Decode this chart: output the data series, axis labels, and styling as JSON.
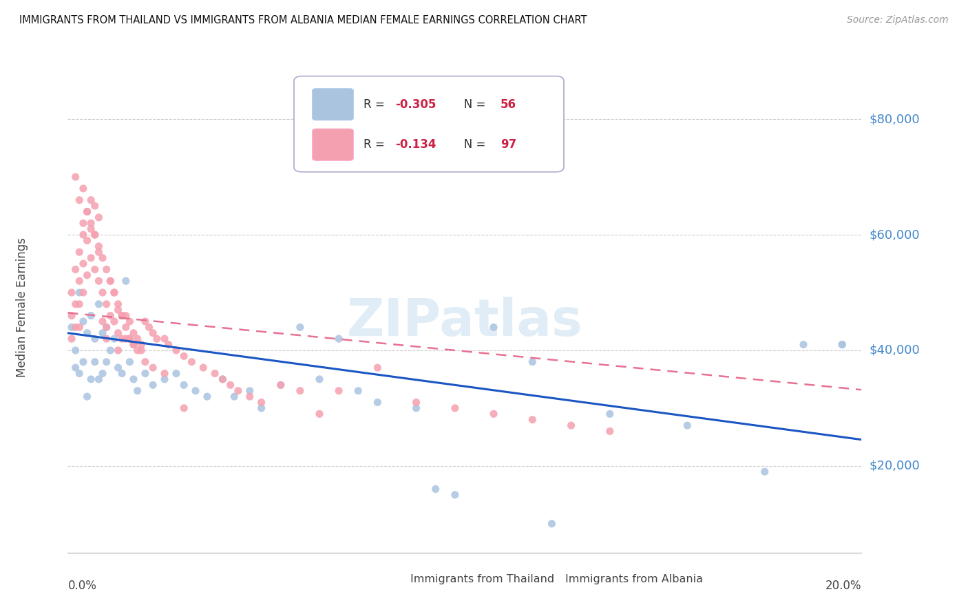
{
  "title": "IMMIGRANTS FROM THAILAND VS IMMIGRANTS FROM ALBANIA MEDIAN FEMALE EARNINGS CORRELATION CHART",
  "source": "Source: ZipAtlas.com",
  "ylabel": "Median Female Earnings",
  "ytick_labels": [
    "$20,000",
    "$40,000",
    "$60,000",
    "$80,000"
  ],
  "ytick_values": [
    20000,
    40000,
    60000,
    80000
  ],
  "ylim": [
    5000,
    90000
  ],
  "xlim": [
    0.0,
    0.205
  ],
  "thailand_color": "#aac4e0",
  "albania_color": "#f5a0b0",
  "thailand_line_color": "#1a56c4",
  "albania_line_color": "#e87090",
  "watermark": "ZIPatlas",
  "legend_R1": "R = ",
  "legend_R1val": "-0.305",
  "legend_N1": "N = ",
  "legend_N1val": "56",
  "legend_R2": "R =  ",
  "legend_R2val": "-0.134",
  "legend_N2": "N = ",
  "legend_N2val": "97",
  "bottom_label1": "Immigrants from Thailand",
  "bottom_label2": "Immigrants from Albania",
  "thailand_points_x": [
    0.001,
    0.002,
    0.002,
    0.003,
    0.003,
    0.004,
    0.004,
    0.005,
    0.005,
    0.006,
    0.006,
    0.007,
    0.007,
    0.008,
    0.008,
    0.009,
    0.009,
    0.01,
    0.01,
    0.011,
    0.012,
    0.013,
    0.014,
    0.015,
    0.016,
    0.017,
    0.018,
    0.02,
    0.022,
    0.025,
    0.028,
    0.03,
    0.033,
    0.036,
    0.04,
    0.043,
    0.047,
    0.05,
    0.055,
    0.06,
    0.065,
    0.07,
    0.075,
    0.08,
    0.09,
    0.095,
    0.1,
    0.11,
    0.12,
    0.14,
    0.16,
    0.18,
    0.19,
    0.2,
    0.2,
    0.125
  ],
  "thailand_points_y": [
    44000,
    40000,
    37000,
    50000,
    36000,
    45000,
    38000,
    43000,
    32000,
    46000,
    35000,
    42000,
    38000,
    48000,
    35000,
    43000,
    36000,
    44000,
    38000,
    40000,
    42000,
    37000,
    36000,
    52000,
    38000,
    35000,
    33000,
    36000,
    34000,
    35000,
    36000,
    34000,
    33000,
    32000,
    35000,
    32000,
    33000,
    30000,
    34000,
    44000,
    35000,
    42000,
    33000,
    31000,
    30000,
    16000,
    15000,
    44000,
    38000,
    29000,
    27000,
    19000,
    41000,
    41000,
    41000,
    10000
  ],
  "albania_points_x": [
    0.001,
    0.001,
    0.001,
    0.002,
    0.002,
    0.002,
    0.003,
    0.003,
    0.003,
    0.003,
    0.004,
    0.004,
    0.004,
    0.005,
    0.005,
    0.005,
    0.006,
    0.006,
    0.006,
    0.007,
    0.007,
    0.007,
    0.008,
    0.008,
    0.008,
    0.009,
    0.009,
    0.01,
    0.01,
    0.01,
    0.011,
    0.011,
    0.012,
    0.012,
    0.013,
    0.013,
    0.013,
    0.014,
    0.014,
    0.015,
    0.015,
    0.016,
    0.016,
    0.017,
    0.017,
    0.018,
    0.019,
    0.019,
    0.02,
    0.021,
    0.022,
    0.023,
    0.025,
    0.026,
    0.028,
    0.03,
    0.032,
    0.035,
    0.038,
    0.04,
    0.042,
    0.044,
    0.047,
    0.05,
    0.055,
    0.06,
    0.065,
    0.07,
    0.08,
    0.09,
    0.1,
    0.11,
    0.12,
    0.13,
    0.14,
    0.004,
    0.005,
    0.006,
    0.007,
    0.008,
    0.009,
    0.01,
    0.011,
    0.012,
    0.013,
    0.014,
    0.015,
    0.016,
    0.017,
    0.018,
    0.02,
    0.022,
    0.025,
    0.03,
    0.002,
    0.003,
    0.004
  ],
  "albania_points_y": [
    50000,
    46000,
    42000,
    54000,
    48000,
    44000,
    57000,
    52000,
    48000,
    44000,
    60000,
    55000,
    50000,
    64000,
    59000,
    53000,
    66000,
    61000,
    56000,
    65000,
    60000,
    54000,
    63000,
    57000,
    52000,
    50000,
    45000,
    48000,
    44000,
    42000,
    52000,
    46000,
    50000,
    45000,
    47000,
    43000,
    40000,
    46000,
    42000,
    46000,
    42000,
    45000,
    42000,
    43000,
    41000,
    42000,
    41000,
    40000,
    45000,
    44000,
    43000,
    42000,
    42000,
    41000,
    40000,
    39000,
    38000,
    37000,
    36000,
    35000,
    34000,
    33000,
    32000,
    31000,
    34000,
    33000,
    29000,
    33000,
    37000,
    31000,
    30000,
    29000,
    28000,
    27000,
    26000,
    68000,
    64000,
    62000,
    60000,
    58000,
    56000,
    54000,
    52000,
    50000,
    48000,
    46000,
    44000,
    42000,
    41000,
    40000,
    38000,
    37000,
    36000,
    30000,
    70000,
    66000,
    62000
  ]
}
